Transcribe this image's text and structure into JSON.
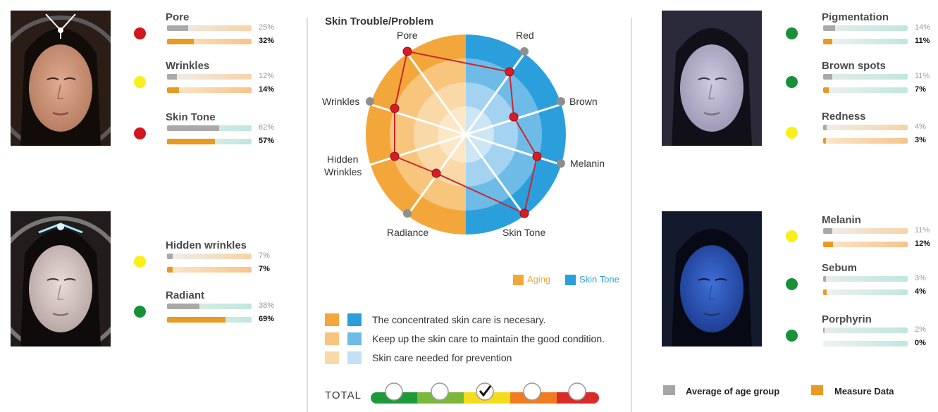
{
  "radar": {
    "title": "Skin Trouble/Problem",
    "labels": {
      "pore": "Pore",
      "red": "Red",
      "wrinkles": "Wrinkles",
      "brown": "Brown",
      "hidden_wrinkles_1": "Hidden",
      "hidden_wrinkles_2": "Wrinkles",
      "melanin": "Melanin",
      "radiance": "Radiance",
      "skin_tone": "Skin Tone"
    },
    "legend": {
      "aging": "Aging",
      "skin_tone": "Skin Tone"
    },
    "colors": {
      "aging": "#f3a73a",
      "skin_tone": "#2b9fdc",
      "point": "#d91c24",
      "line": "#c7282f"
    }
  },
  "guide": {
    "rows": [
      "The concentrated skin care is necesary.",
      "Keep up the skin care to maintain the good condition.",
      "Skin care needed for prevention"
    ]
  },
  "total": {
    "label": "TOTAL",
    "selected_index": 2,
    "segment_colors": [
      "#1e9a3b",
      "#7ab73a",
      "#f4dc1d",
      "#ee7d22",
      "#d92b28"
    ]
  },
  "status_colors": {
    "red": "#d0171c",
    "yellow": "#f8ef1b",
    "green": "#1a8f3a"
  },
  "left": [
    {
      "name": "Pore",
      "status": "red",
      "avg": "25%",
      "avg_value": 0.25,
      "measure": "32%",
      "measure_value": 0.32
    },
    {
      "name": "Wrinkles",
      "status": "yellow",
      "avg": "12%",
      "avg_value": 0.12,
      "measure": "14%",
      "measure_value": 0.14
    },
    {
      "name": "Skin Tone",
      "status": "red",
      "avg": "62%",
      "avg_value": 0.62,
      "measure": "57%",
      "measure_value": 0.57
    },
    {
      "name": "Hidden wrinkles",
      "status": "yellow",
      "avg": "7%",
      "avg_value": 0.07,
      "measure": "7%",
      "measure_value": 0.07
    },
    {
      "name": "Radiant",
      "status": "green",
      "avg": "38%",
      "avg_value": 0.38,
      "measure": "69%",
      "measure_value": 0.69
    }
  ],
  "right": [
    {
      "name": "Pigmentation",
      "status": "green",
      "avg": "14%",
      "avg_value": 0.14,
      "measure": "11%",
      "measure_value": 0.11
    },
    {
      "name": "Brown spots",
      "status": "green",
      "avg": "11%",
      "avg_value": 0.11,
      "measure": "7%",
      "measure_value": 0.07
    },
    {
      "name": "Redness",
      "status": "yellow",
      "avg": "4%",
      "avg_value": 0.04,
      "measure": "3%",
      "measure_value": 0.03
    },
    {
      "name": "Melanin",
      "status": "yellow",
      "avg": "11%",
      "avg_value": 0.11,
      "measure": "12%",
      "measure_value": 0.12
    },
    {
      "name": "Sebum",
      "status": "green",
      "avg": "3%",
      "avg_value": 0.03,
      "measure": "4%",
      "measure_value": 0.04
    },
    {
      "name": "Porphyrin",
      "status": "green",
      "avg": "2%",
      "avg_value": 0.02,
      "measure": "0%",
      "measure_value": 0.0
    }
  ],
  "footer_legend": {
    "average": "Average of age group",
    "measure": "Measure Data",
    "average_color": "#a5a5a5",
    "measure_color": "#e89a21"
  }
}
